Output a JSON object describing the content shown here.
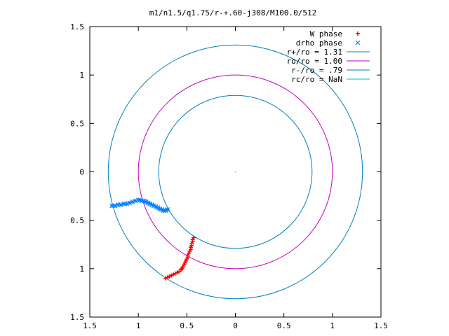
{
  "chart_data": {
    "type": "scatter",
    "title": "m1/n1.5/q1.75/r-+.60-j308/M100.0/512",
    "xlim": [
      -1.5,
      1.5
    ],
    "ylim": [
      -1.5,
      1.5
    ],
    "x_ticks": [
      -1.5,
      -1,
      -0.5,
      0,
      0.5,
      1,
      1.5
    ],
    "y_ticks": [
      -1.5,
      -1,
      -0.5,
      0,
      0.5,
      1,
      1.5
    ],
    "x_tick_labels": [
      "1.5",
      "1",
      "0.5",
      "0",
      "0.5",
      "1",
      "1.5"
    ],
    "y_tick_labels": [
      "1.5",
      "1",
      "0.5",
      "0",
      "0.5",
      "1",
      "1.5"
    ],
    "legend_position": "top-right",
    "series": [
      {
        "name": "W phase",
        "kind": "points",
        "marker": "+",
        "color": "#ff0000",
        "points": [
          [
            -0.43,
            -0.68
          ],
          [
            -0.44,
            -0.7
          ],
          [
            -0.44,
            -0.72
          ],
          [
            -0.45,
            -0.74
          ],
          [
            -0.45,
            -0.76
          ],
          [
            -0.46,
            -0.78
          ],
          [
            -0.46,
            -0.8
          ],
          [
            -0.47,
            -0.82
          ],
          [
            -0.48,
            -0.84
          ],
          [
            -0.49,
            -0.86
          ],
          [
            -0.49,
            -0.88
          ],
          [
            -0.5,
            -0.9
          ],
          [
            -0.51,
            -0.92
          ],
          [
            -0.52,
            -0.94
          ],
          [
            -0.53,
            -0.96
          ],
          [
            -0.54,
            -0.98
          ],
          [
            -0.55,
            -1.0
          ],
          [
            -0.56,
            -1.01
          ],
          [
            -0.58,
            -1.03
          ],
          [
            -0.6,
            -1.04
          ],
          [
            -0.62,
            -1.05
          ],
          [
            -0.64,
            -1.06
          ],
          [
            -0.66,
            -1.07
          ],
          [
            -0.68,
            -1.08
          ],
          [
            -0.7,
            -1.09
          ],
          [
            -0.72,
            -1.1
          ]
        ]
      },
      {
        "name": "drho phase",
        "kind": "points",
        "marker": "x",
        "color": "#0080ff",
        "points": [
          [
            -1.27,
            -0.35
          ],
          [
            -1.24,
            -0.35
          ],
          [
            -1.21,
            -0.34
          ],
          [
            -1.18,
            -0.34
          ],
          [
            -1.15,
            -0.33
          ],
          [
            -1.12,
            -0.33
          ],
          [
            -1.09,
            -0.32
          ],
          [
            -1.06,
            -0.31
          ],
          [
            -1.03,
            -0.3
          ],
          [
            -1.0,
            -0.29
          ],
          [
            -0.98,
            -0.29
          ],
          [
            -0.96,
            -0.3
          ],
          [
            -0.94,
            -0.3
          ],
          [
            -0.92,
            -0.31
          ],
          [
            -0.9,
            -0.32
          ],
          [
            -0.88,
            -0.33
          ],
          [
            -0.86,
            -0.34
          ],
          [
            -0.84,
            -0.35
          ],
          [
            -0.82,
            -0.36
          ],
          [
            -0.8,
            -0.37
          ],
          [
            -0.78,
            -0.38
          ],
          [
            -0.76,
            -0.39
          ],
          [
            -0.74,
            -0.4
          ],
          [
            -0.72,
            -0.4
          ],
          [
            -0.7,
            -0.39
          ]
        ]
      },
      {
        "name": "r+/ro = 1.31",
        "kind": "circle",
        "radius": 1.31,
        "color": "#0080c0"
      },
      {
        "name": "ro/ro = 1.00",
        "kind": "circle",
        "radius": 1.0,
        "color": "#c000c0"
      },
      {
        "name": "r-/ro = .79",
        "kind": "circle",
        "radius": 0.79,
        "color": "#0080c0"
      },
      {
        "name": "rc/ro = NaN",
        "kind": "circle",
        "radius": null,
        "color": "#00c0c0"
      }
    ]
  }
}
